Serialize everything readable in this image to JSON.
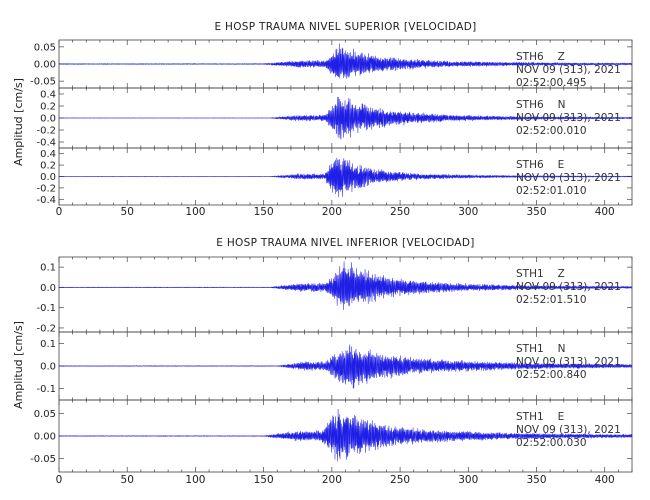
{
  "chart_data": [
    {
      "type": "line",
      "title": "E HOSP TRAUMA NIVEL SUPERIOR [VELOCIDAD]",
      "ylabel": "Amplitud [cm/s]",
      "xlim": [
        0,
        420
      ],
      "x_ticks": [
        "0",
        "50",
        "100",
        "150",
        "200",
        "250",
        "300",
        "350",
        "400"
      ],
      "trace_color": "#1f1fe6",
      "series": [
        {
          "name": "STH6 Z",
          "station": "STH6",
          "component": "Z",
          "date": "NOV 09 (313), 2021",
          "time": "02:52:00.495",
          "ylim": [
            -0.07,
            0.07
          ],
          "y_ticks": [
            "0.05",
            "0.00",
            "-0.05"
          ],
          "envelope": {
            "noise": 0.0015,
            "onset": 150,
            "rise_end": 175,
            "main_onset": 195,
            "peak": 205,
            "coda_tau": 25,
            "pre_amp": 0.01,
            "peak_amp": 0.062,
            "coda_amp": 0.015
          }
        },
        {
          "name": "STH6 N",
          "station": "STH6",
          "component": "N",
          "date": "NOV 09 (313), 2021",
          "time": "02:52:00.010",
          "ylim": [
            -0.5,
            0.5
          ],
          "y_ticks": [
            "0.4",
            "0.2",
            "0.0",
            "-0.2",
            "-0.4"
          ],
          "envelope": {
            "noise": 0.004,
            "onset": 155,
            "rise_end": 175,
            "main_onset": 195,
            "peak": 205,
            "coda_tau": 28,
            "pre_amp": 0.05,
            "peak_amp": 0.42,
            "coda_amp": 0.08
          }
        },
        {
          "name": "STH6 E",
          "station": "STH6",
          "component": "E",
          "date": "NOV 09 (313), 2021",
          "time": "02:52:01.010",
          "ylim": [
            -0.5,
            0.5
          ],
          "y_ticks": [
            "0.4",
            "0.2",
            "0.0",
            "-0.2",
            "-0.4"
          ],
          "envelope": {
            "noise": 0.004,
            "onset": 155,
            "rise_end": 175,
            "main_onset": 195,
            "peak": 202,
            "coda_tau": 22,
            "pre_amp": 0.05,
            "peak_amp": 0.45,
            "coda_amp": 0.07
          }
        }
      ]
    },
    {
      "type": "line",
      "title": "E HOSP TRAUMA NIVEL INFERIOR [VELOCIDAD]",
      "ylabel": "Amplitud [cm/s]",
      "xlim": [
        0,
        420
      ],
      "x_ticks": [
        "0",
        "50",
        "100",
        "150",
        "200",
        "250",
        "300",
        "350",
        "400"
      ],
      "trace_color": "#1f1fe6",
      "series": [
        {
          "name": "STH1 Z",
          "station": "STH1",
          "component": "Z",
          "date": "NOV 09 (313), 2021",
          "time": "02:52:01.510",
          "ylim": [
            -0.22,
            0.15
          ],
          "y_ticks": [
            "0.1",
            "0.0",
            "-0.1",
            "-0.2"
          ],
          "envelope": {
            "noise": 0.002,
            "onset": 155,
            "rise_end": 175,
            "main_onset": 195,
            "peak": 210,
            "coda_tau": 28,
            "pre_amp": 0.02,
            "peak_amp": 0.14,
            "coda_amp": 0.03
          }
        },
        {
          "name": "STH1 N",
          "station": "STH1",
          "component": "N",
          "date": "NOV 09 (313), 2021",
          "time": "02:52:00.840",
          "ylim": [
            -0.15,
            0.15
          ],
          "y_ticks": [
            "0.1",
            "0.0",
            "-0.1"
          ],
          "envelope": {
            "noise": 0.002,
            "onset": 160,
            "rise_end": 180,
            "main_onset": 195,
            "peak": 212,
            "coda_tau": 32,
            "pre_amp": 0.02,
            "peak_amp": 0.11,
            "coda_amp": 0.035
          }
        },
        {
          "name": "STH1 E",
          "station": "STH1",
          "component": "E",
          "date": "NOV 09 (313), 2021",
          "time": "02:52:00.030",
          "ylim": [
            -0.08,
            0.08
          ],
          "y_ticks": [
            "0.05",
            "0.00",
            "-0.05"
          ],
          "envelope": {
            "noise": 0.001,
            "onset": 150,
            "rise_end": 175,
            "main_onset": 192,
            "peak": 205,
            "coda_tau": 30,
            "pre_amp": 0.012,
            "peak_amp": 0.065,
            "coda_amp": 0.018
          }
        }
      ]
    }
  ]
}
